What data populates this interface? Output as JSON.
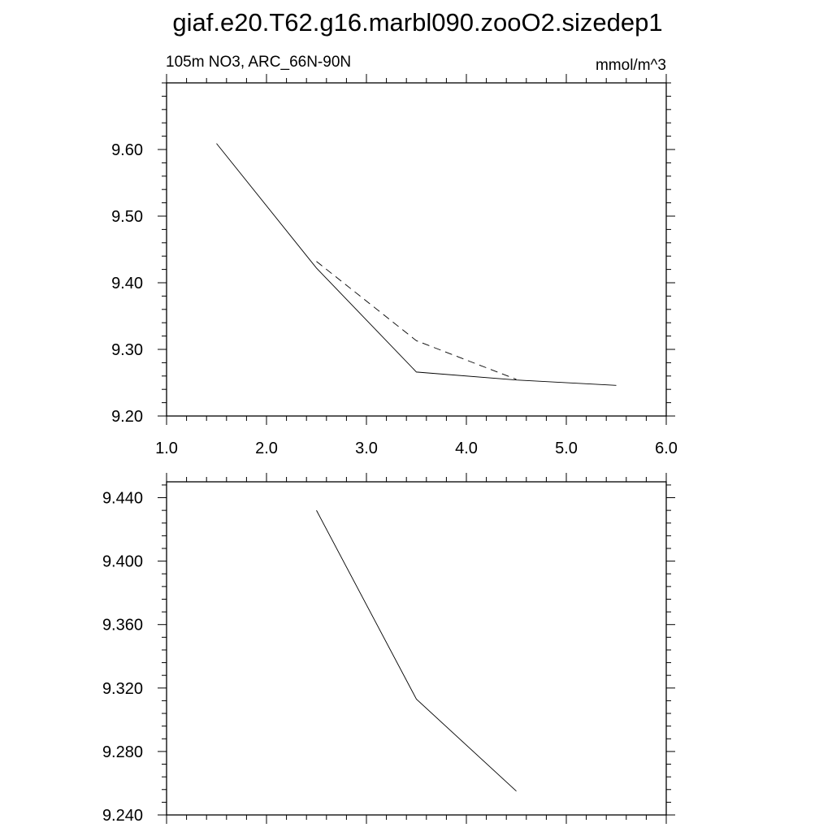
{
  "title": "giaf.e20.T62.g16.marbl090.zooO2.sizedep1",
  "chart_data": [
    {
      "type": "line",
      "left_label": "105m NO3, ARC_66N-90N",
      "right_label": "mmol/m^3",
      "xlim": [
        1.0,
        6.0
      ],
      "ylim": [
        9.2,
        9.7
      ],
      "x_ticks": [
        1.0,
        2.0,
        3.0,
        4.0,
        5.0,
        6.0
      ],
      "x_tick_labels": [
        "1.0",
        "2.0",
        "3.0",
        "4.0",
        "5.0",
        "6.0"
      ],
      "y_ticks": [
        9.2,
        9.3,
        9.4,
        9.5,
        9.6
      ],
      "y_tick_labels": [
        "9.20",
        "9.30",
        "9.40",
        "9.50",
        "9.60"
      ],
      "grid": false,
      "series": [
        {
          "style": "solid",
          "color": "#000000",
          "x": [
            1.5,
            2.5,
            3.5,
            4.5,
            5.5
          ],
          "y": [
            9.609,
            9.422,
            9.266,
            9.254,
            9.246
          ]
        },
        {
          "style": "dashed",
          "color": "#000000",
          "x": [
            2.5,
            3.5,
            4.5
          ],
          "y": [
            9.432,
            9.313,
            9.255
          ]
        }
      ]
    },
    {
      "type": "line",
      "xlim": [
        1.0,
        6.0
      ],
      "ylim": [
        9.24,
        9.45
      ],
      "x_ticks": [
        1.0,
        2.0,
        3.0,
        4.0,
        5.0,
        6.0
      ],
      "x_tick_labels": [],
      "y_ticks": [
        9.24,
        9.28,
        9.32,
        9.36,
        9.4,
        9.44
      ],
      "y_tick_labels": [
        "9.240",
        "9.280",
        "9.320",
        "9.360",
        "9.400",
        "9.440"
      ],
      "grid": false,
      "series": [
        {
          "style": "solid",
          "color": "#000000",
          "x": [
            2.5,
            3.5,
            4.5
          ],
          "y": [
            9.432,
            9.313,
            9.255
          ]
        }
      ]
    }
  ]
}
